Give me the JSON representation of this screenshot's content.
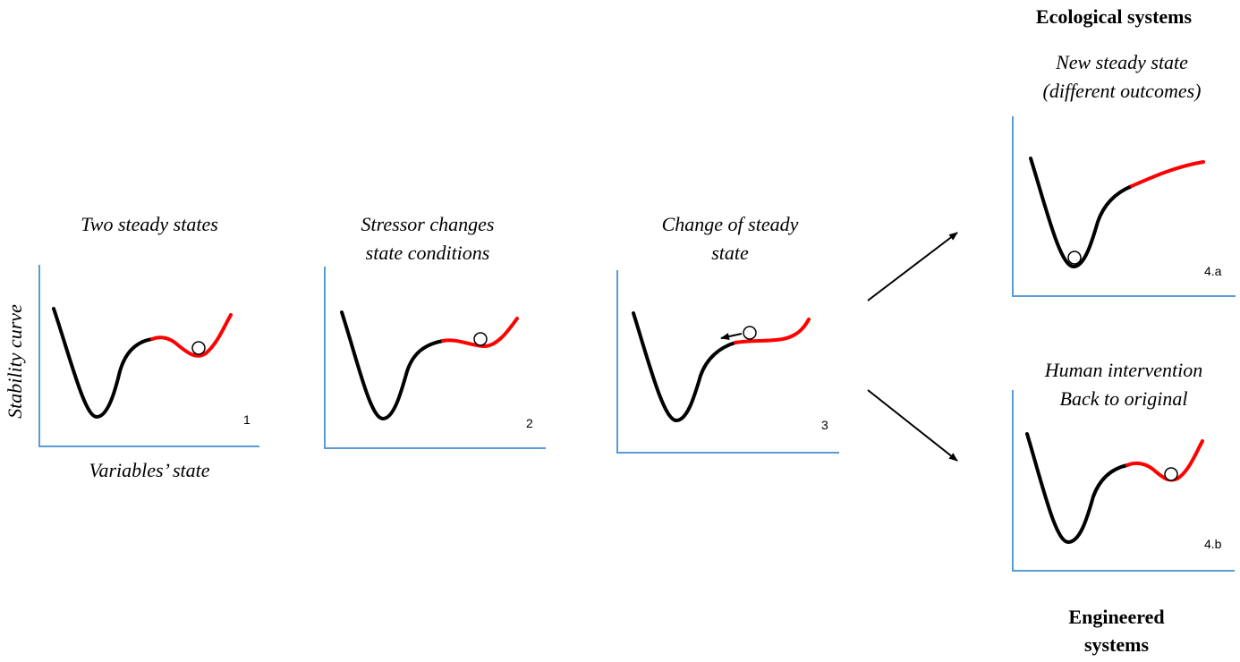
{
  "panels": [
    {
      "id": "p1",
      "caption_lines": [
        "Two steady states"
      ],
      "number": "1"
    },
    {
      "id": "p2",
      "caption_lines": [
        "Stressor changes",
        "state conditions"
      ],
      "number": "2"
    },
    {
      "id": "p3",
      "caption_lines": [
        "Change of steady",
        "state"
      ],
      "number": "3"
    },
    {
      "id": "p4a",
      "caption_lines": [
        "New steady state",
        "(different outcomes)"
      ],
      "number": "4.a"
    },
    {
      "id": "p4b",
      "caption_lines": [
        "Human intervention",
        "Back to original"
      ],
      "number": "4.b"
    }
  ],
  "axes": {
    "y_label": "Stability curve",
    "x_label": "Variables’ state"
  },
  "headings": {
    "ecological": "Ecological systems",
    "engineered_line1": "Engineered",
    "engineered_line2": "systems"
  },
  "colors": {
    "axis": "#5b9bd5",
    "stable_curve": "#000000",
    "unstable_curve": "#ff0000"
  }
}
